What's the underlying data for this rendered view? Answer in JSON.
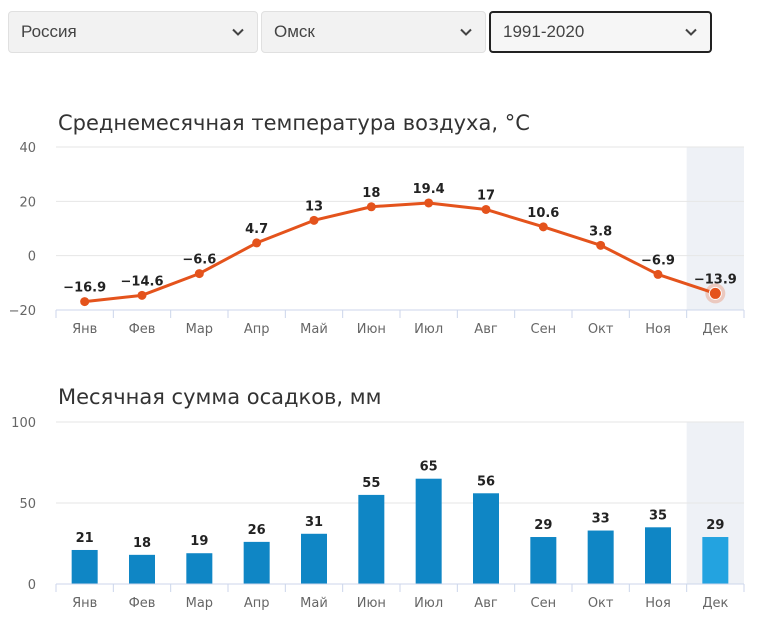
{
  "filters": {
    "country": "Россия",
    "city": "Омск",
    "period": "1991-2020"
  },
  "colors": {
    "temperature_line": "#e4531c",
    "precipitation_bar": "#0f86c5",
    "precipitation_bar_highlight": "#23a3e0",
    "highlight_band": "#eef1f6"
  },
  "icons": {
    "select_arrow": "chevron-down-icon"
  },
  "chart_data": [
    {
      "type": "line",
      "title": "Среднемесячная температура воздуха, °C",
      "categories": [
        "Янв",
        "Фев",
        "Мар",
        "Апр",
        "Май",
        "Июн",
        "Июл",
        "Авг",
        "Сен",
        "Окт",
        "Ноя",
        "Дек"
      ],
      "series": [
        {
          "values": [
            -16.9,
            -14.6,
            -6.6,
            4.7,
            13,
            18,
            19.4,
            17,
            10.6,
            3.8,
            -6.9,
            -13.9
          ]
        }
      ],
      "data_labels": [
        "−16.9",
        "−14.6",
        "−6.6",
        "4.7",
        "13",
        "18",
        "19.4",
        "17",
        "10.6",
        "3.8",
        "−6.9",
        "−13.9"
      ],
      "y_ticks": [
        "40",
        "20",
        "0",
        "−20"
      ],
      "y_tick_values": [
        40,
        20,
        0,
        -20
      ],
      "ylim": [
        -20,
        40
      ],
      "grid": true,
      "highlighted_category": "Дек"
    },
    {
      "type": "bar",
      "title": "Месячная сумма осадков, мм",
      "categories": [
        "Янв",
        "Фев",
        "Мар",
        "Апр",
        "Май",
        "Июн",
        "Июл",
        "Авг",
        "Сен",
        "Окт",
        "Ноя",
        "Дек"
      ],
      "series": [
        {
          "values": [
            21,
            18,
            19,
            26,
            31,
            55,
            65,
            56,
            29,
            33,
            35,
            29
          ]
        }
      ],
      "y_ticks": [
        "100",
        "50",
        "0"
      ],
      "y_tick_values": [
        100,
        50,
        0
      ],
      "ylim": [
        0,
        100
      ],
      "grid": true,
      "highlighted_category": "Дек"
    }
  ]
}
